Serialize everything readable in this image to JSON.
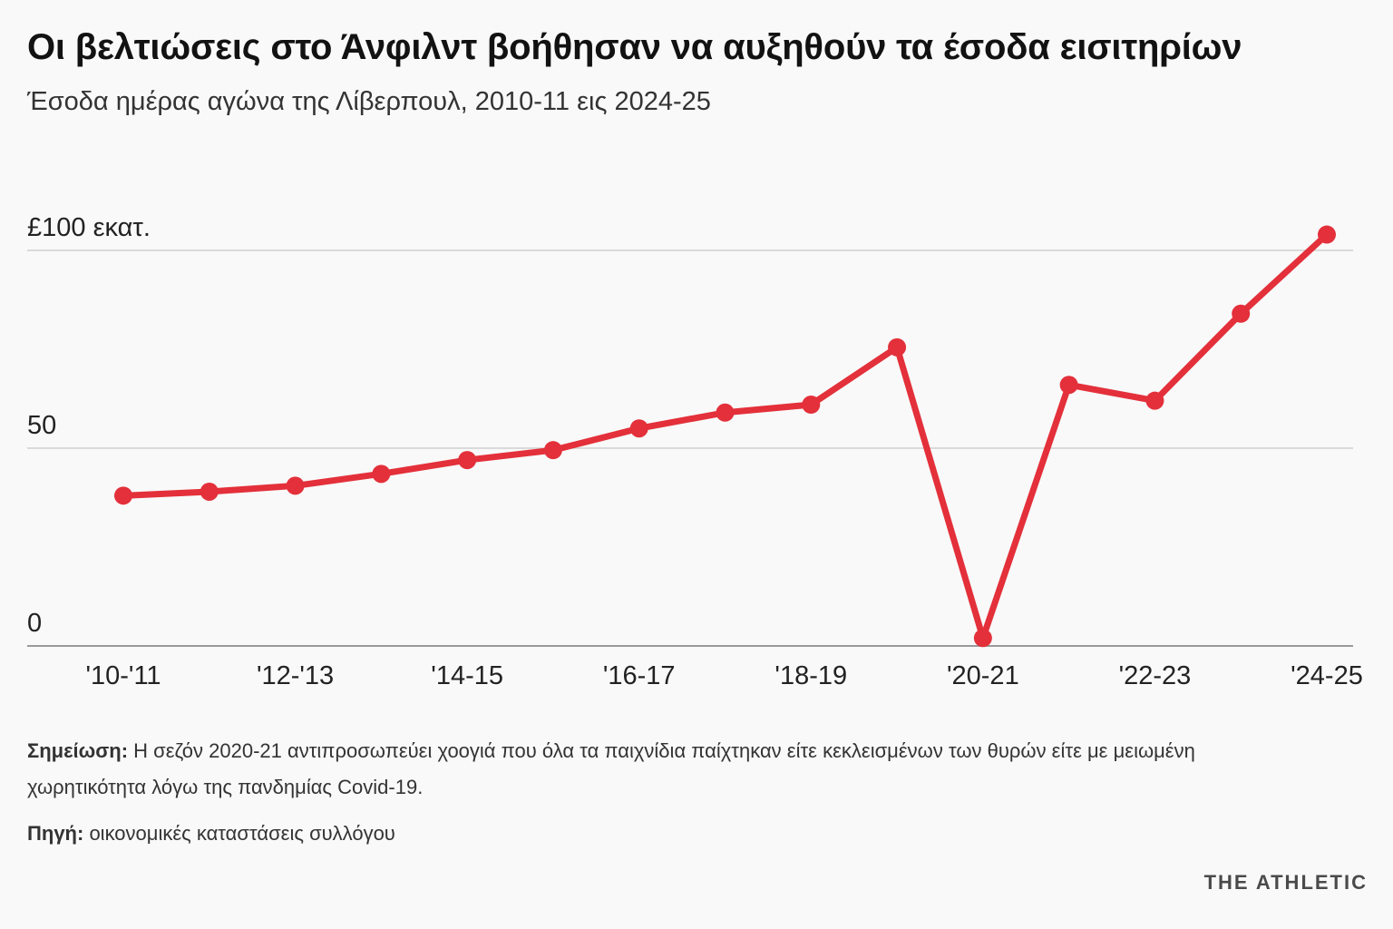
{
  "header": {
    "title": "Οι βελτιώσεις στο Άνφιλντ βοήθησαν να αυξηθούν τα έσοδα εισιτηρίων",
    "subtitle": "Έσοδα ημέρας αγώνα της Λίβερπουλ, 2010-11 εις 2024-25"
  },
  "chart_data": {
    "type": "line",
    "title": "Οι βελτιώσεις στο Άνφιλντ βοήθησαν να αυξηθούν τα έσοδα εισιτηρίων",
    "subtitle": "Έσοδα ημέρας αγώνα της Λίβερπουλ, 2010-11 εις 2024-25",
    "xlabel": "",
    "ylabel": "",
    "categories": [
      "2010-11",
      "2011-12",
      "2012-13",
      "2013-14",
      "2014-15",
      "2015-16",
      "2016-17",
      "2017-18",
      "2018-19",
      "2019-20",
      "2020-21",
      "2021-22",
      "2022-23",
      "2023-24",
      "2024-25"
    ],
    "x_tick_labels": [
      "'10-'11",
      "",
      "'12-'13",
      "",
      "'14-15",
      "",
      "'16-17",
      "",
      "'18-19",
      "",
      "'20-21",
      "",
      "'22-23",
      "",
      "'24-25"
    ],
    "series": [
      {
        "values": [
          38,
          39,
          40.5,
          43.5,
          47,
          49.5,
          55,
          59,
          61,
          75.5,
          2,
          66,
          62,
          84,
          104
        ],
        "color": "#e3303a"
      }
    ],
    "ylim": [
      0,
      120
    ],
    "y_ticks": [
      {
        "value": 0,
        "label": "0"
      },
      {
        "value": 50,
        "label": "50"
      },
      {
        "value": 100,
        "label": "£100 εκατ."
      }
    ],
    "grid": true
  },
  "footer": {
    "note_label": "Σημείωση:",
    "note_text": " Η σεζόν 2020-21 αντιπροσωπεύει χοογιά που όλα τα παιχνίδια παίχτηκαν είτε κεκλεισμένων των θυρών είτε με μειωμένη χωρητικότητα λόγω της πανδημίας Covid-19.",
    "source_label": "Πηγή:",
    "source_text": " οικονομικές καταστάσεις συλλόγου",
    "brand": "THE ATHLETIC"
  }
}
